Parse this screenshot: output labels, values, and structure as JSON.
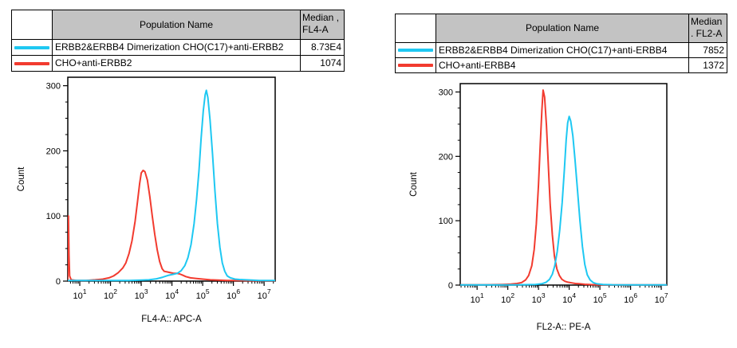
{
  "colors": {
    "cyan": "#1EC8F2",
    "red": "#F23B2F",
    "table_header_bg": "#C3C3C3",
    "axis": "#000000",
    "background": "#FFFFFF"
  },
  "tables": [
    {
      "header": {
        "population": "Population Name",
        "median_line1": "Median ,",
        "median_line2": "FL4-A"
      },
      "rows": [
        {
          "swatch": "cyan",
          "name": "ERBB2&ERBB4 Dimerization CHO(C17)+anti-ERBB2",
          "median": "8.73E4"
        },
        {
          "swatch": "red",
          "name": "CHO+anti-ERBB2",
          "median": "1074"
        }
      ]
    },
    {
      "header": {
        "population": "Population Name",
        "median_line1": "Median",
        "median_line2": ". FL2-A"
      },
      "rows": [
        {
          "swatch": "cyan",
          "name": "ERBB2&ERBB4 Dimerization CHO(C17)+anti-ERBB4",
          "median": "7852"
        },
        {
          "swatch": "red",
          "name": "CHO+anti-ERBB4",
          "median": "1372"
        }
      ]
    }
  ],
  "chart_data": [
    {
      "type": "line",
      "subtype": "flow-cytometry-histogram",
      "title": "",
      "xlabel": "FL4-A:: APC-A",
      "ylabel": "Count",
      "x_scale": "log10",
      "xlim_log10": [
        0.61,
        7.36
      ],
      "x_major_tick_exponents": [
        1,
        2,
        3,
        4,
        5,
        6,
        7
      ],
      "ylim": [
        0,
        313
      ],
      "y_ticks": [
        0,
        100,
        200,
        300
      ],
      "y_minor_step": 25,
      "grid": false,
      "legend_position": "table-above",
      "series": [
        {
          "name": "CHO+anti-ERBB2",
          "color_key": "red",
          "median_label": "1074",
          "peak": {
            "x_log10": 3.06,
            "count": 170
          },
          "points_log10x_count": [
            [
              0.61,
              0
            ],
            [
              0.62,
              62
            ],
            [
              0.63,
              100
            ],
            [
              0.65,
              40
            ],
            [
              0.67,
              8
            ],
            [
              0.72,
              2
            ],
            [
              0.9,
              1
            ],
            [
              1.2,
              1
            ],
            [
              1.5,
              2
            ],
            [
              1.75,
              3
            ],
            [
              1.95,
              5
            ],
            [
              2.1,
              8
            ],
            [
              2.25,
              13
            ],
            [
              2.4,
              20
            ],
            [
              2.5,
              28
            ],
            [
              2.6,
              42
            ],
            [
              2.7,
              62
            ],
            [
              2.8,
              92
            ],
            [
              2.88,
              122
            ],
            [
              2.95,
              150
            ],
            [
              3.0,
              166
            ],
            [
              3.06,
              170
            ],
            [
              3.12,
              168
            ],
            [
              3.2,
              155
            ],
            [
              3.28,
              130
            ],
            [
              3.36,
              100
            ],
            [
              3.44,
              72
            ],
            [
              3.52,
              48
            ],
            [
              3.6,
              30
            ],
            [
              3.68,
              19
            ],
            [
              3.75,
              15
            ],
            [
              3.85,
              14
            ],
            [
              3.95,
              13
            ],
            [
              4.05,
              12
            ],
            [
              4.15,
              12
            ],
            [
              4.25,
              11
            ],
            [
              4.35,
              9
            ],
            [
              4.45,
              7
            ],
            [
              4.6,
              5
            ],
            [
              4.8,
              4
            ],
            [
              5.0,
              3
            ],
            [
              5.25,
              2
            ],
            [
              5.5,
              1.5
            ],
            [
              5.8,
              1
            ],
            [
              6.2,
              0.8
            ],
            [
              6.6,
              0.6
            ],
            [
              7.0,
              0.5
            ],
            [
              7.36,
              0.5
            ]
          ]
        },
        {
          "name": "ERBB2&ERBB4 Dimerization CHO(C17)+anti-ERBB2",
          "color_key": "cyan",
          "median_label": "8.73E4",
          "peak": {
            "x_log10": 5.12,
            "count": 293
          },
          "points_log10x_count": [
            [
              0.61,
              1
            ],
            [
              1.2,
              1
            ],
            [
              2.0,
              1
            ],
            [
              2.6,
              1
            ],
            [
              3.0,
              1.5
            ],
            [
              3.25,
              2
            ],
            [
              3.5,
              3.5
            ],
            [
              3.7,
              6
            ],
            [
              3.9,
              9
            ],
            [
              4.05,
              10.5
            ],
            [
              4.18,
              12
            ],
            [
              4.3,
              16
            ],
            [
              4.42,
              24
            ],
            [
              4.52,
              36
            ],
            [
              4.62,
              56
            ],
            [
              4.72,
              88
            ],
            [
              4.8,
              125
            ],
            [
              4.88,
              170
            ],
            [
              4.95,
              220
            ],
            [
              5.02,
              262
            ],
            [
              5.08,
              286
            ],
            [
              5.12,
              293
            ],
            [
              5.17,
              282
            ],
            [
              5.24,
              248
            ],
            [
              5.32,
              196
            ],
            [
              5.4,
              138
            ],
            [
              5.48,
              88
            ],
            [
              5.56,
              52
            ],
            [
              5.64,
              28
            ],
            [
              5.72,
              15
            ],
            [
              5.8,
              8
            ],
            [
              5.9,
              5
            ],
            [
              6.05,
              3
            ],
            [
              6.2,
              2.5
            ],
            [
              6.4,
              2
            ],
            [
              6.6,
              1.5
            ],
            [
              6.85,
              1
            ],
            [
              7.36,
              1
            ]
          ]
        }
      ]
    },
    {
      "type": "line",
      "subtype": "flow-cytometry-histogram",
      "title": "",
      "xlabel": "FL2-A:: PE-A",
      "ylabel": "Count",
      "x_scale": "log10",
      "xlim_log10": [
        0.45,
        7.18
      ],
      "x_major_tick_exponents": [
        1,
        2,
        3,
        4,
        5,
        6,
        7
      ],
      "ylim": [
        0,
        313
      ],
      "y_ticks": [
        0,
        100,
        200,
        300
      ],
      "y_minor_step": 25,
      "grid": false,
      "legend_position": "table-above",
      "series": [
        {
          "name": "CHO+anti-ERBB4",
          "color_key": "red",
          "median_label": "1372",
          "peak": {
            "x_log10": 3.15,
            "count": 303
          },
          "points_log10x_count": [
            [
              0.45,
              0.5
            ],
            [
              1.2,
              0.5
            ],
            [
              1.8,
              1
            ],
            [
              2.1,
              1.5
            ],
            [
              2.3,
              2.5
            ],
            [
              2.45,
              4
            ],
            [
              2.58,
              8
            ],
            [
              2.68,
              15
            ],
            [
              2.78,
              30
            ],
            [
              2.86,
              55
            ],
            [
              2.93,
              95
            ],
            [
              3.0,
              155
            ],
            [
              3.06,
              220
            ],
            [
              3.11,
              272
            ],
            [
              3.15,
              303
            ],
            [
              3.2,
              292
            ],
            [
              3.26,
              248
            ],
            [
              3.32,
              185
            ],
            [
              3.38,
              125
            ],
            [
              3.45,
              78
            ],
            [
              3.52,
              45
            ],
            [
              3.6,
              25
            ],
            [
              3.68,
              15
            ],
            [
              3.76,
              9
            ],
            [
              3.86,
              6
            ],
            [
              3.96,
              4.5
            ],
            [
              4.08,
              3.5
            ],
            [
              4.2,
              2.5
            ],
            [
              4.35,
              2
            ],
            [
              4.5,
              1.2
            ],
            [
              4.7,
              0.8
            ],
            [
              4.95,
              0.5
            ],
            [
              5.3,
              0.3
            ],
            [
              6.0,
              0.3
            ],
            [
              7.18,
              0.3
            ]
          ]
        },
        {
          "name": "ERBB2&ERBB4 Dimerization CHO(C17)+anti-ERBB4",
          "color_key": "cyan",
          "median_label": "7852",
          "peak": {
            "x_log10": 4.0,
            "count": 262
          },
          "points_log10x_count": [
            [
              0.45,
              0.3
            ],
            [
              1.5,
              0.3
            ],
            [
              2.4,
              0.5
            ],
            [
              2.9,
              1
            ],
            [
              3.1,
              2
            ],
            [
              3.25,
              4.5
            ],
            [
              3.36,
              9
            ],
            [
              3.45,
              17
            ],
            [
              3.53,
              30
            ],
            [
              3.61,
              52
            ],
            [
              3.69,
              85
            ],
            [
              3.77,
              128
            ],
            [
              3.84,
              178
            ],
            [
              3.9,
              225
            ],
            [
              3.95,
              252
            ],
            [
              4.0,
              262
            ],
            [
              4.05,
              255
            ],
            [
              4.12,
              232
            ],
            [
              4.19,
              195
            ],
            [
              4.27,
              148
            ],
            [
              4.35,
              100
            ],
            [
              4.43,
              60
            ],
            [
              4.51,
              32
            ],
            [
              4.59,
              16
            ],
            [
              4.68,
              8
            ],
            [
              4.78,
              4
            ],
            [
              4.9,
              2
            ],
            [
              5.1,
              1
            ],
            [
              5.4,
              0.5
            ],
            [
              6.0,
              0.3
            ],
            [
              7.18,
              0.3
            ]
          ]
        }
      ]
    }
  ]
}
